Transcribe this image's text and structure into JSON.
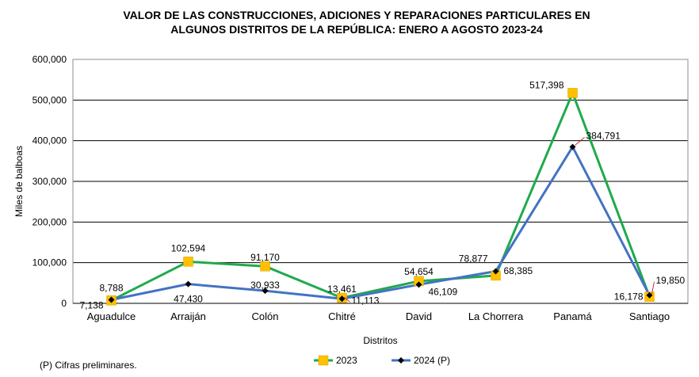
{
  "chart_data": {
    "type": "line",
    "title_line1": "VALOR DE LAS CONSTRUCCIONES, ADICIONES Y REPARACIONES PARTICULARES EN",
    "title_line2": "ALGUNOS DISTRITOS DE LA REPÚBLICA: ENERO A AGOSTO 2023-24",
    "xlabel": "Distritos",
    "ylabel": "Miles de balboas",
    "ylim": [
      0,
      600000
    ],
    "yticks": [
      "0",
      "100,000",
      "200,000",
      "300,000",
      "400,000",
      "500,000",
      "600,000"
    ],
    "grid": "horizontal",
    "legend_position": "bottom",
    "categories": [
      "Aguadulce",
      "Arraiján",
      "Colón",
      "Chitré",
      "David",
      "La Chorrera",
      "Panamá",
      "Santiago"
    ],
    "series": [
      {
        "name": "2023",
        "color": "#1faa4b",
        "marker": "square",
        "marker_color": "#ffc000",
        "values": [
          7138,
          102594,
          91170,
          13461,
          54654,
          68385,
          517398,
          16178
        ],
        "labels": [
          "7,138",
          "102,594",
          "91,170",
          "13,461",
          "54,654",
          "68,385",
          "517,398",
          "16,178"
        ]
      },
      {
        "name": "2024 (P)",
        "color": "#4472c4",
        "marker": "diamond",
        "marker_color": "#000000",
        "values": [
          8788,
          47430,
          30933,
          11113,
          46109,
          78877,
          384791,
          19850
        ],
        "labels": [
          "8,788",
          "47,430",
          "30,933",
          "11,113",
          "46,109",
          "78,877",
          "384,791",
          "19,850"
        ]
      }
    ]
  },
  "footnote": "(P) Cifras  preliminares."
}
